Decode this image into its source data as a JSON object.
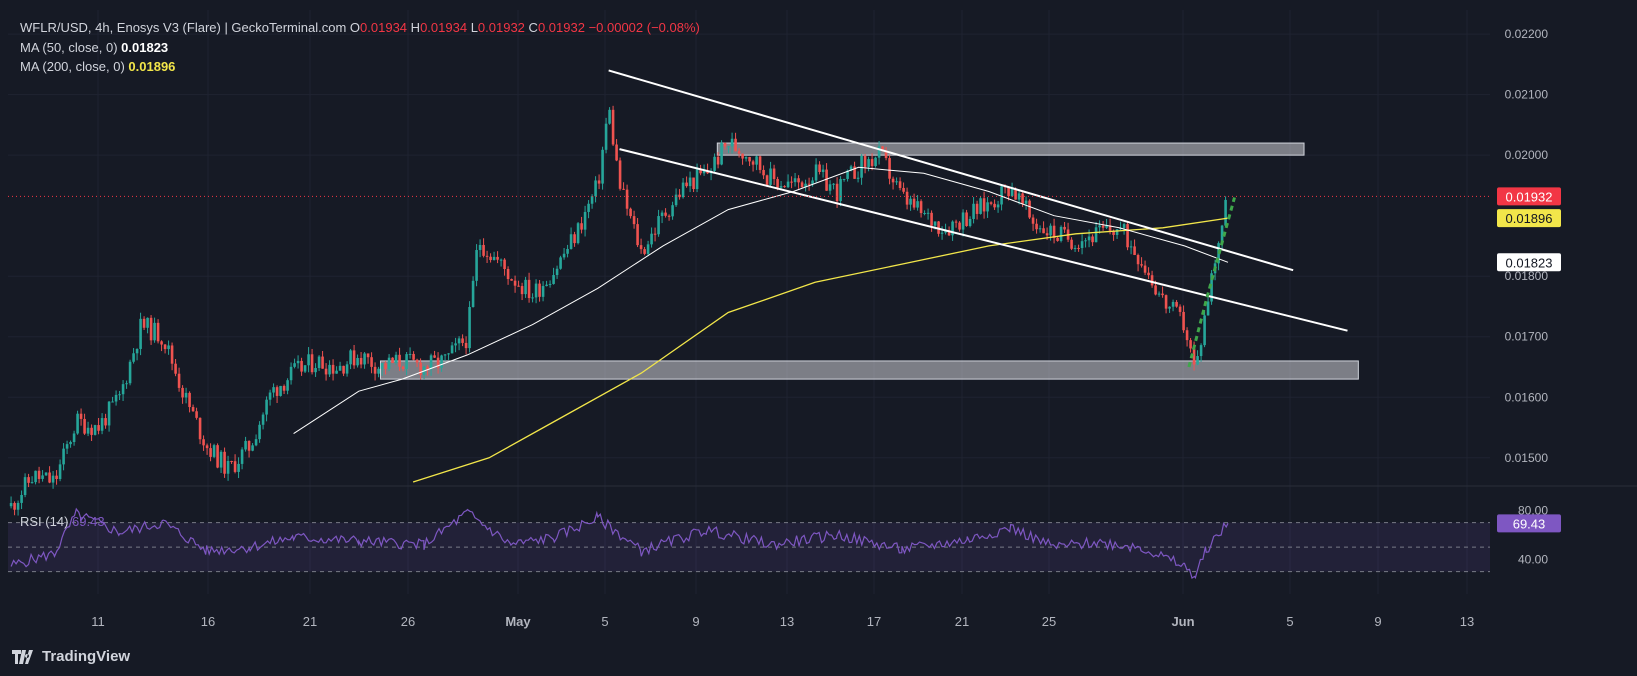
{
  "legend": {
    "symbol": "WFLR/USD, 4h, Enosys V3 (Flare) | GeckoTerminal.com",
    "o_label": "O",
    "o": "0.01934",
    "h_label": "H",
    "h": "0.01934",
    "l_label": "L",
    "l": "0.01932",
    "c_label": "C",
    "c": "0.01932",
    "change": "−0.00002 (−0.08%)",
    "ma50_label": "MA (50, close, 0)",
    "ma50_value": "0.01823",
    "ma200_label": "MA (200, close, 0)",
    "ma200_value": "0.01896"
  },
  "rsi_legend": {
    "label": "RSI (14)",
    "value": "69.43"
  },
  "brand": "TradingView",
  "colors": {
    "background": "#161a25",
    "up": "#26a69a",
    "down": "#ef5350",
    "ma50": "#ffffff",
    "ma200": "#f2e64a",
    "rsi": "#7e57c2",
    "price_tag": "#f23645"
  },
  "chart_data": [
    {
      "type": "candlestick",
      "title": "WFLR/USD, 4h, Enosys V3 (Flare)",
      "timeframe": "4h",
      "ylim": [
        0.0146,
        0.0222
      ],
      "y_ticks": [
        "0.01500",
        "0.01600",
        "0.01700",
        "0.01800",
        "0.02000",
        "0.02100",
        "0.02200"
      ],
      "x_ticks": [
        "11",
        "16",
        "21",
        "26",
        "May",
        "5",
        "9",
        "13",
        "17",
        "21",
        "25",
        "Jun",
        "5",
        "9",
        "13"
      ],
      "price_tags": {
        "last": "0.01932",
        "ma200": "0.01896",
        "ma50": "0.01823"
      },
      "close_path": [
        {
          "d": "Apr 7",
          "v": 0.0142
        },
        {
          "d": "Apr 8",
          "v": 0.0147
        },
        {
          "d": "Apr 9",
          "v": 0.0146
        },
        {
          "d": "Apr 10",
          "v": 0.0156
        },
        {
          "d": "Apr 11",
          "v": 0.0155
        },
        {
          "d": "Apr 12",
          "v": 0.016
        },
        {
          "d": "Apr 13",
          "v": 0.0172
        },
        {
          "d": "Apr 14",
          "v": 0.017
        },
        {
          "d": "Apr 15",
          "v": 0.016
        },
        {
          "d": "Apr 16",
          "v": 0.0152
        },
        {
          "d": "Apr 17",
          "v": 0.0148
        },
        {
          "d": "Apr 18",
          "v": 0.0152
        },
        {
          "d": "Apr 19",
          "v": 0.0161
        },
        {
          "d": "Apr 20",
          "v": 0.0164
        },
        {
          "d": "Apr 21",
          "v": 0.0166
        },
        {
          "d": "Apr 22",
          "v": 0.0165
        },
        {
          "d": "Apr 23",
          "v": 0.0167
        },
        {
          "d": "Apr 24",
          "v": 0.0165
        },
        {
          "d": "Apr 25",
          "v": 0.0166
        },
        {
          "d": "Apr 26",
          "v": 0.0165
        },
        {
          "d": "Apr 27",
          "v": 0.0166
        },
        {
          "d": "Apr 28",
          "v": 0.017
        },
        {
          "d": "Apr 28.5",
          "v": 0.0186
        },
        {
          "d": "Apr 29",
          "v": 0.0184
        },
        {
          "d": "Apr 30",
          "v": 0.018
        },
        {
          "d": "May 1",
          "v": 0.0177
        },
        {
          "d": "May 2",
          "v": 0.0181
        },
        {
          "d": "May 3",
          "v": 0.0187
        },
        {
          "d": "May 4",
          "v": 0.0195
        },
        {
          "d": "May 4.5",
          "v": 0.0208
        },
        {
          "d": "May 5",
          "v": 0.0195
        },
        {
          "d": "May 6",
          "v": 0.0184
        },
        {
          "d": "May 7",
          "v": 0.019
        },
        {
          "d": "May 8",
          "v": 0.0195
        },
        {
          "d": "May 9",
          "v": 0.0197
        },
        {
          "d": "May 10",
          "v": 0.0202
        },
        {
          "d": "May 11",
          "v": 0.02
        },
        {
          "d": "May 12",
          "v": 0.0196
        },
        {
          "d": "May 13",
          "v": 0.0195
        },
        {
          "d": "May 14",
          "v": 0.0197
        },
        {
          "d": "May 15",
          "v": 0.0194
        },
        {
          "d": "May 16",
          "v": 0.0198
        },
        {
          "d": "May 17",
          "v": 0.02
        },
        {
          "d": "May 18",
          "v": 0.0193
        },
        {
          "d": "May 19",
          "v": 0.019
        },
        {
          "d": "May 20",
          "v": 0.0188
        },
        {
          "d": "May 21",
          "v": 0.019
        },
        {
          "d": "May 22",
          "v": 0.0192
        },
        {
          "d": "May 23",
          "v": 0.0195
        },
        {
          "d": "May 24",
          "v": 0.0189
        },
        {
          "d": "May 25",
          "v": 0.0187
        },
        {
          "d": "May 26",
          "v": 0.0186
        },
        {
          "d": "May 27",
          "v": 0.0187
        },
        {
          "d": "May 28",
          "v": 0.0188
        },
        {
          "d": "May 29",
          "v": 0.0183
        },
        {
          "d": "May 30",
          "v": 0.0176
        },
        {
          "d": "May 31",
          "v": 0.0172
        },
        {
          "d": "May 31.5",
          "v": 0.0164
        },
        {
          "d": "Jun 1",
          "v": 0.0175
        },
        {
          "d": "Jun 1.5",
          "v": 0.0185
        },
        {
          "d": "Jun 2",
          "v": 0.01932
        }
      ],
      "ma50_path": [
        {
          "d": "Apr 20",
          "v": 0.0154
        },
        {
          "d": "Apr 23",
          "v": 0.0161
        },
        {
          "d": "Apr 25",
          "v": 0.0163
        },
        {
          "d": "Apr 28",
          "v": 0.0167
        },
        {
          "d": "May 1",
          "v": 0.0172
        },
        {
          "d": "May 4",
          "v": 0.0178
        },
        {
          "d": "May 7",
          "v": 0.0185
        },
        {
          "d": "May 10",
          "v": 0.0191
        },
        {
          "d": "May 13",
          "v": 0.0194
        },
        {
          "d": "May 16",
          "v": 0.0198
        },
        {
          "d": "May 19",
          "v": 0.0197
        },
        {
          "d": "May 22",
          "v": 0.0194
        },
        {
          "d": "May 25",
          "v": 0.019
        },
        {
          "d": "May 28",
          "v": 0.0188
        },
        {
          "d": "May 31",
          "v": 0.0185
        },
        {
          "d": "Jun 2",
          "v": 0.01823
        }
      ],
      "ma200_path": [
        {
          "d": "Apr 25.5",
          "v": 0.0146
        },
        {
          "d": "Apr 29",
          "v": 0.015
        },
        {
          "d": "May 2",
          "v": 0.0156
        },
        {
          "d": "May 6",
          "v": 0.0164
        },
        {
          "d": "May 10",
          "v": 0.0174
        },
        {
          "d": "May 14",
          "v": 0.0179
        },
        {
          "d": "May 18",
          "v": 0.0182
        },
        {
          "d": "May 22",
          "v": 0.0185
        },
        {
          "d": "May 26",
          "v": 0.0187
        },
        {
          "d": "May 30",
          "v": 0.0188
        },
        {
          "d": "Jun 2",
          "v": 0.01896
        }
      ],
      "channel_upper": [
        {
          "d": "May 4.5",
          "v": 0.0214
        },
        {
          "d": "Jun 5",
          "v": 0.0181
        }
      ],
      "channel_lower": [
        {
          "d": "May 5",
          "v": 0.0201
        },
        {
          "d": "Jun 7.5",
          "v": 0.0171
        }
      ],
      "zones": [
        {
          "from": "May 9.5",
          "to": "Jun 5.5",
          "low": 0.02,
          "high": 0.0202
        },
        {
          "from": "Apr 24",
          "to": "Jun 8",
          "low": 0.0163,
          "high": 0.0166
        }
      ],
      "projection": [
        {
          "d": "Jun 0.2",
          "v": 0.0165
        },
        {
          "d": "Jun 1",
          "v": 0.0176
        },
        {
          "d": "Jun 2.3",
          "v": 0.0193
        }
      ]
    },
    {
      "type": "line",
      "title": "RSI (14)",
      "ylim": [
        15,
        95
      ],
      "y_ticks": [
        "80.00",
        "40.00"
      ],
      "bands": [
        70,
        30
      ],
      "last_value": "69.43",
      "path": [
        {
          "d": "Apr 7",
          "v": 35
        },
        {
          "d": "Apr 9",
          "v": 45
        },
        {
          "d": "Apr 10",
          "v": 77
        },
        {
          "d": "Apr 12",
          "v": 62
        },
        {
          "d": "Apr 14",
          "v": 70
        },
        {
          "d": "Apr 16",
          "v": 47
        },
        {
          "d": "Apr 18",
          "v": 50
        },
        {
          "d": "Apr 20",
          "v": 58
        },
        {
          "d": "Apr 23",
          "v": 55
        },
        {
          "d": "Apr 26",
          "v": 52
        },
        {
          "d": "Apr 28",
          "v": 78
        },
        {
          "d": "Apr 30",
          "v": 52
        },
        {
          "d": "May 2",
          "v": 58
        },
        {
          "d": "May 4",
          "v": 74
        },
        {
          "d": "May 6",
          "v": 47
        },
        {
          "d": "May 9",
          "v": 64
        },
        {
          "d": "May 12",
          "v": 52
        },
        {
          "d": "May 15",
          "v": 60
        },
        {
          "d": "May 18",
          "v": 48
        },
        {
          "d": "May 21",
          "v": 56
        },
        {
          "d": "May 23",
          "v": 66
        },
        {
          "d": "May 25",
          "v": 50
        },
        {
          "d": "May 27",
          "v": 54
        },
        {
          "d": "May 29",
          "v": 50
        },
        {
          "d": "May 31",
          "v": 34
        },
        {
          "d": "May 31.5",
          "v": 26
        },
        {
          "d": "Jun 1",
          "v": 48
        },
        {
          "d": "Jun 2",
          "v": 69.43
        }
      ]
    }
  ]
}
